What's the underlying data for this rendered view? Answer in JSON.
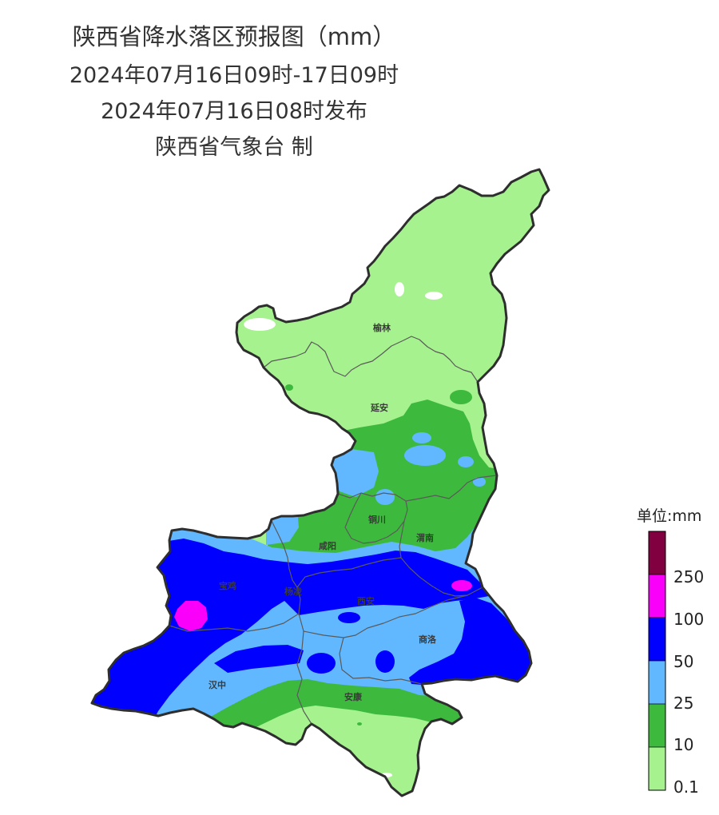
{
  "title": {
    "main": "陕西省降水落区预报图（mm）",
    "period": "2024年07月16日09时-17日09时",
    "issued": "2024年07月16日08时发布",
    "issuer": "陕西省气象台 制"
  },
  "map": {
    "cities": {
      "yulin": "榆林",
      "yanan": "延安",
      "tongchuan": "铜川",
      "weinan": "渭南",
      "xianyang": "咸阳",
      "baoji": "宝鸡",
      "yangling": "杨凌",
      "xian": "西安",
      "shangluo": "商洛",
      "hanzhong": "汉中",
      "ankang": "安康"
    }
  },
  "legend": {
    "unit": "单位:mm",
    "ticks": [
      "250",
      "100",
      "50",
      "25",
      "10",
      "0.1"
    ],
    "colors": [
      "#800040",
      "#fa00fa",
      "#0000fe",
      "#61b8ff",
      "#3dba3d",
      "#a6f28f"
    ],
    "no_data_color": "#ffffff"
  }
}
